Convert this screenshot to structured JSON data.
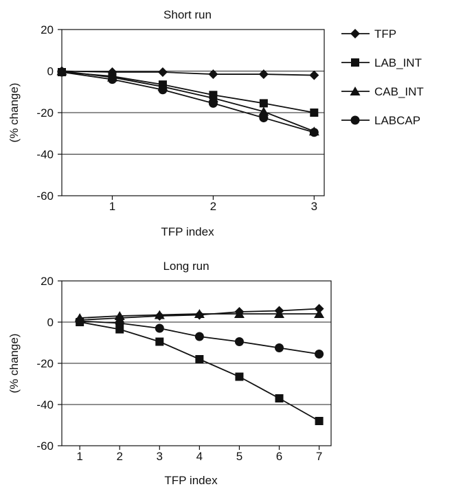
{
  "chart_data": [
    {
      "type": "line",
      "title": "Short run",
      "xlabel": "TFP index",
      "ylabel": "(% change)",
      "x": [
        0.5,
        1,
        1.5,
        2,
        2.5,
        3
      ],
      "xticks": [
        1,
        2,
        3
      ],
      "xlim": [
        0.5,
        3.1
      ],
      "yticks": [
        20,
        0,
        -20,
        -40,
        -60
      ],
      "ylim": [
        -60,
        20
      ],
      "grid": "horizontal at 0, -20, -40",
      "series": [
        {
          "name": "TFP",
          "marker": "diamond",
          "values": [
            0,
            -0.5,
            -0.5,
            -1.5,
            -1.5,
            -2
          ]
        },
        {
          "name": "LAB_INT",
          "marker": "square",
          "values": [
            -0.5,
            -2.5,
            -6.5,
            -11.5,
            -15.5,
            -20
          ]
        },
        {
          "name": "CAB_INT",
          "marker": "triangle",
          "values": [
            0,
            -3,
            -7.5,
            -13,
            -19.5,
            -29
          ]
        },
        {
          "name": "LABCAP",
          "marker": "circle",
          "values": [
            -0.5,
            -4,
            -9,
            -15.5,
            -22.5,
            -29.5
          ]
        }
      ]
    },
    {
      "type": "line",
      "title": "Long run",
      "xlabel": "TFP index",
      "ylabel": "(% change)",
      "x": [
        1,
        2,
        3,
        4,
        5,
        6,
        7
      ],
      "xticks": [
        1,
        2,
        3,
        4,
        5,
        6,
        7
      ],
      "xlim": [
        0.55,
        7.3
      ],
      "yticks": [
        20,
        0,
        -20,
        -40,
        -60
      ],
      "ylim": [
        -60,
        20
      ],
      "grid": "horizontal at 0, -20, -40",
      "series": [
        {
          "name": "TFP",
          "marker": "diamond",
          "values": [
            1,
            2,
            3,
            3.5,
            5,
            5.5,
            6.5
          ]
        },
        {
          "name": "LAB_INT",
          "marker": "square",
          "values": [
            0,
            -3.5,
            -9.5,
            -18,
            -26.5,
            -37,
            -48
          ]
        },
        {
          "name": "CAB_INT",
          "marker": "triangle",
          "values": [
            2,
            3,
            3.5,
            4,
            4,
            4,
            4
          ]
        },
        {
          "name": "LABCAP",
          "marker": "circle",
          "values": [
            0.5,
            -0.5,
            -3,
            -7,
            -9.5,
            -12.5,
            -15.5
          ]
        }
      ]
    }
  ],
  "legend": {
    "placement": "top-right",
    "items": [
      "TFP",
      "LAB_INT",
      "CAB_INT",
      "LABCAP"
    ]
  }
}
